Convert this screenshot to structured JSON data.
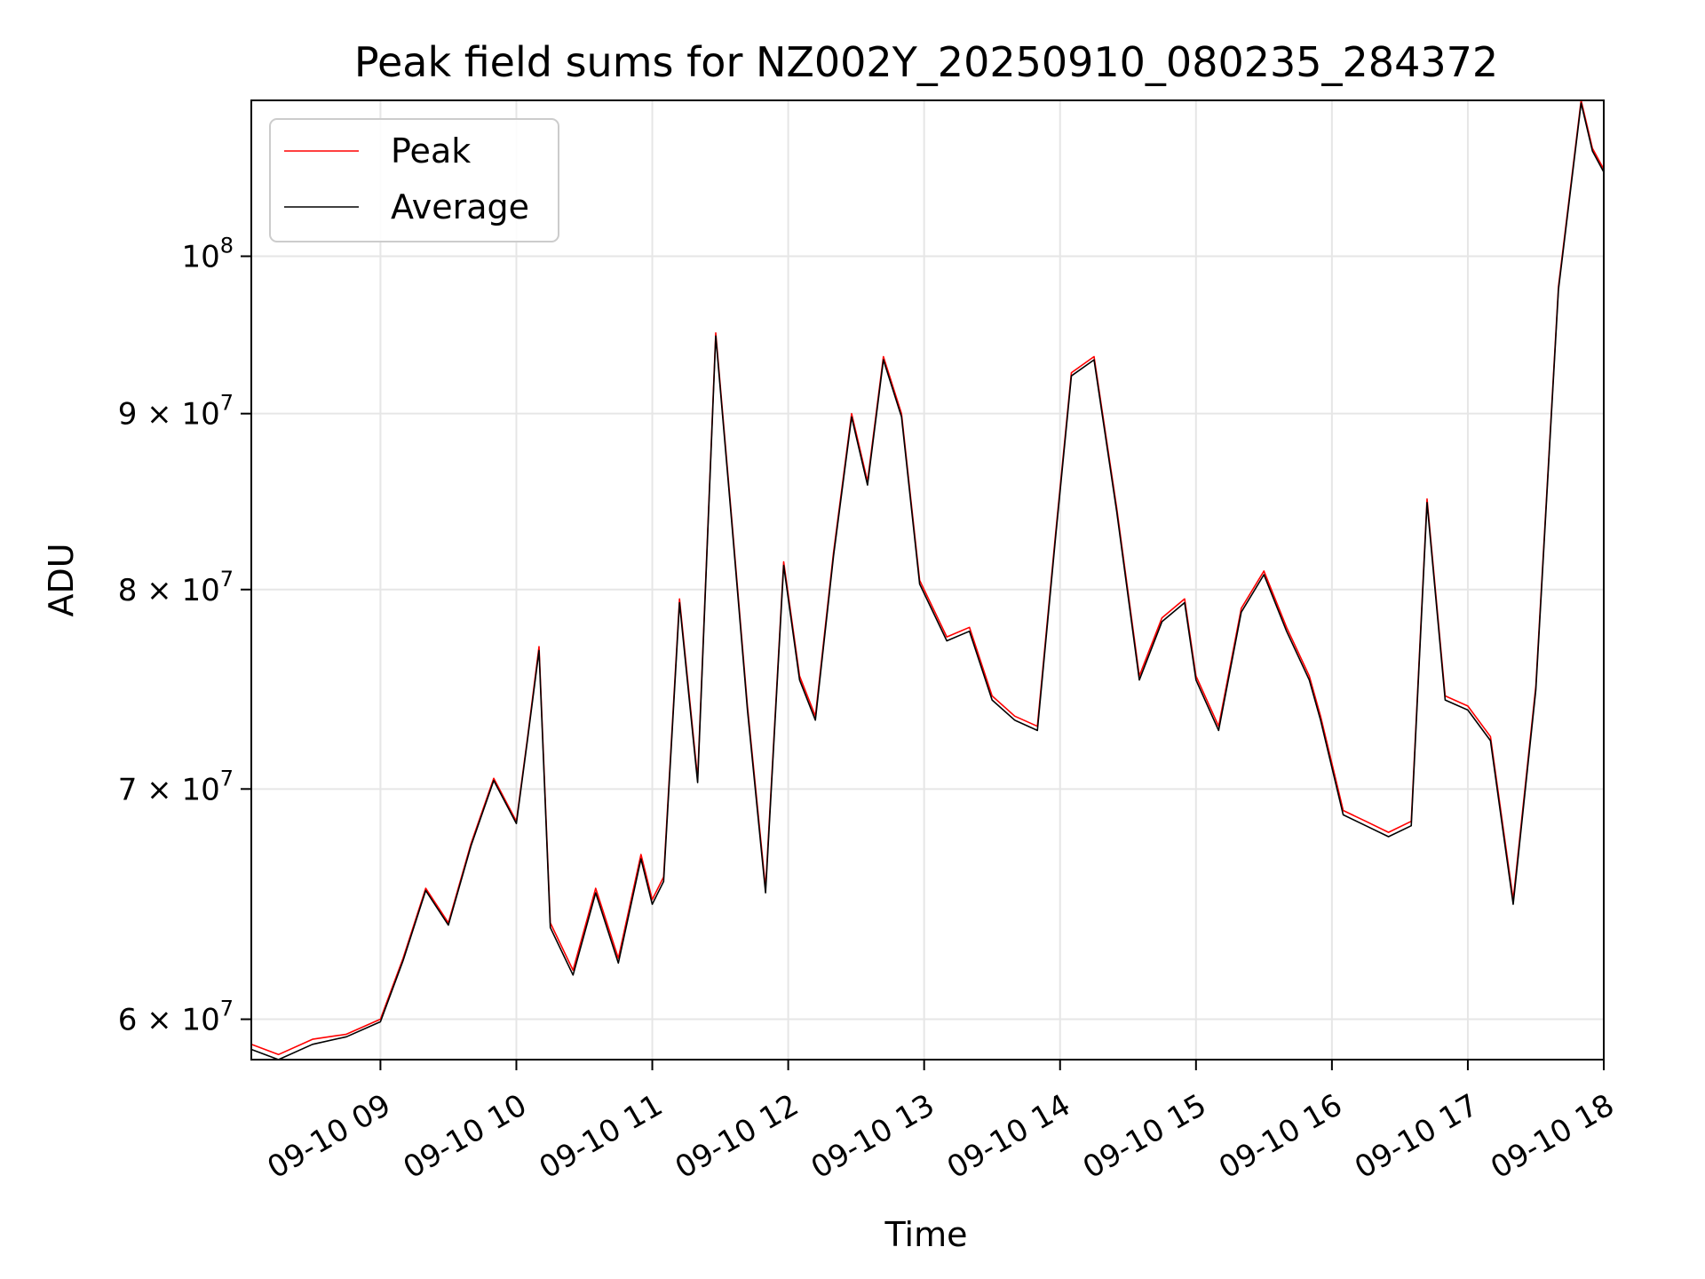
{
  "chart_data": {
    "type": "line",
    "title": "Peak field sums for NZ002Y_20250910_080235_284372",
    "xlabel": "Time",
    "ylabel": "ADU",
    "yscale": "log",
    "xlim": [
      "2025-09-10 08:03",
      "2025-09-10 18:00"
    ],
    "ylim": [
      58400000,
      111000000
    ],
    "x_ticks": [
      "09-10 09",
      "09-10 10",
      "09-10 11",
      "09-10 12",
      "09-10 13",
      "09-10 14",
      "09-10 15",
      "09-10 16",
      "09-10 17",
      "09-10 18"
    ],
    "y_ticks": [
      {
        "value": 60000000,
        "mantissa": "6",
        "exponent": "7"
      },
      {
        "value": 70000000,
        "mantissa": "7",
        "exponent": "7"
      },
      {
        "value": 80000000,
        "mantissa": "8",
        "exponent": "7"
      },
      {
        "value": 90000000,
        "mantissa": "9",
        "exponent": "7"
      },
      {
        "value": 100000000,
        "mantissa": "",
        "exponent": "8"
      }
    ],
    "grid": true,
    "legend_position": "upper-left",
    "colors": {
      "Peak": "#ff0000",
      "Average": "#000000",
      "grid": "#e6e6e6"
    },
    "x": [
      "08:03",
      "08:15",
      "08:30",
      "08:45",
      "09:00",
      "09:10",
      "09:20",
      "09:30",
      "09:40",
      "09:50",
      "10:00",
      "10:05",
      "10:10",
      "10:15",
      "10:25",
      "10:35",
      "10:45",
      "10:55",
      "11:00",
      "11:05",
      "11:12",
      "11:20",
      "11:28",
      "11:35",
      "11:42",
      "11:50",
      "11:58",
      "12:05",
      "12:12",
      "12:20",
      "12:28",
      "12:35",
      "12:42",
      "12:50",
      "12:58",
      "13:10",
      "13:20",
      "13:30",
      "13:40",
      "13:50",
      "13:58",
      "14:05",
      "14:15",
      "14:25",
      "14:35",
      "14:45",
      "14:55",
      "15:00",
      "15:10",
      "15:20",
      "15:30",
      "15:40",
      "15:50",
      "15:55",
      "16:05",
      "16:15",
      "16:25",
      "16:35",
      "16:42",
      "16:50",
      "17:00",
      "17:10",
      "17:20",
      "17:30",
      "17:40",
      "17:50",
      "17:55",
      "18:00"
    ],
    "series": [
      {
        "name": "Peak",
        "values": [
          59000000,
          58600000,
          59200000,
          59400000,
          60000000,
          62500000,
          65500000,
          64000000,
          67500000,
          70500000,
          68500000,
          72500000,
          77000000,
          64000000,
          62000000,
          65500000,
          62500000,
          67000000,
          65000000,
          66000000,
          79500000,
          70500000,
          95000000,
          84000000,
          74000000,
          65500000,
          81500000,
          75500000,
          73500000,
          82000000,
          90000000,
          86000000,
          93500000,
          90000000,
          80500000,
          77500000,
          78000000,
          74500000,
          73500000,
          73000000,
          83000000,
          92500000,
          93500000,
          84500000,
          75500000,
          78500000,
          79500000,
          75500000,
          73000000,
          79000000,
          81000000,
          78000000,
          75500000,
          73500000,
          69000000,
          68500000,
          68000000,
          68500000,
          85000000,
          74500000,
          74000000,
          72500000,
          65000000,
          75000000,
          98000000,
          111000000,
          107500000,
          106000000
        ]
      },
      {
        "name": "Average",
        "values": [
          58800000,
          58400000,
          59000000,
          59300000,
          59900000,
          62400000,
          65400000,
          63900000,
          67400000,
          70400000,
          68400000,
          72400000,
          76800000,
          63800000,
          61800000,
          65300000,
          62300000,
          66800000,
          64800000,
          65800000,
          79300000,
          70300000,
          94800000,
          83800000,
          73800000,
          65300000,
          81300000,
          75300000,
          73300000,
          81800000,
          89800000,
          85800000,
          93300000,
          89800000,
          80300000,
          77300000,
          77800000,
          74300000,
          73300000,
          72800000,
          82800000,
          92300000,
          93300000,
          84300000,
          75300000,
          78300000,
          79300000,
          75300000,
          72800000,
          78800000,
          80800000,
          77800000,
          75300000,
          73300000,
          68800000,
          68300000,
          67800000,
          68300000,
          84800000,
          74300000,
          73800000,
          72300000,
          64800000,
          74800000,
          97800000,
          110800000,
          107300000,
          105800000
        ]
      }
    ]
  }
}
